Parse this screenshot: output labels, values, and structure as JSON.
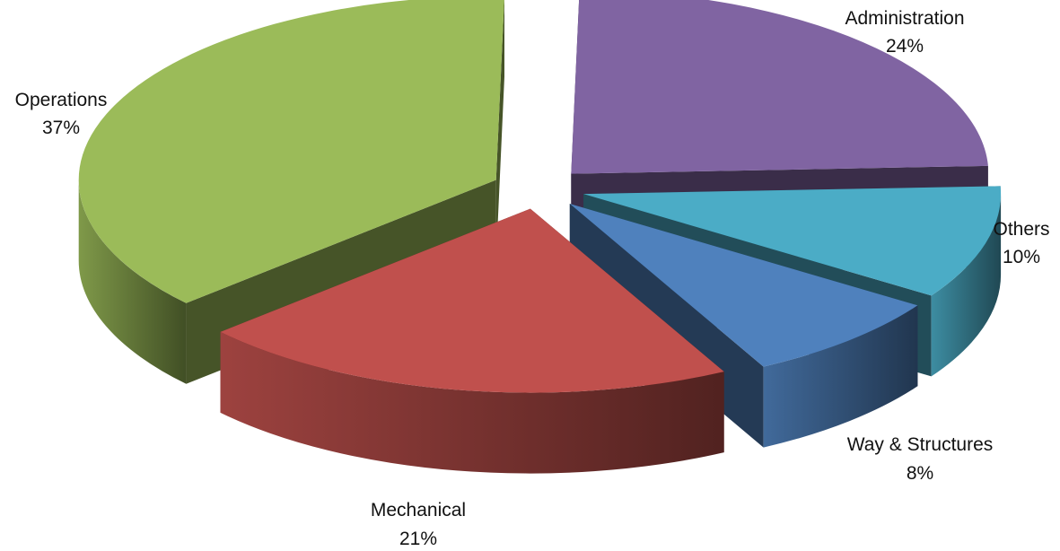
{
  "chart_data": {
    "type": "pie",
    "style": "3d-exploded",
    "title": "",
    "series": [
      {
        "name": "",
        "slices": [
          {
            "label": "Administration",
            "pct_label": "24%",
            "value": 24,
            "color": "#8064A2"
          },
          {
            "label": "Others",
            "pct_label": "10%",
            "value": 10,
            "color": "#4BACC6"
          },
          {
            "label": "Way & Structures",
            "pct_label": "8%",
            "value": 8,
            "color": "#4F81BD"
          },
          {
            "label": "Mechanical",
            "pct_label": "21%",
            "value": 21,
            "color": "#C0504D"
          },
          {
            "label": "Operations",
            "pct_label": "37%",
            "value": 37,
            "color": "#9BBB59"
          }
        ]
      }
    ],
    "legend": "none",
    "data_labels": "outside"
  }
}
